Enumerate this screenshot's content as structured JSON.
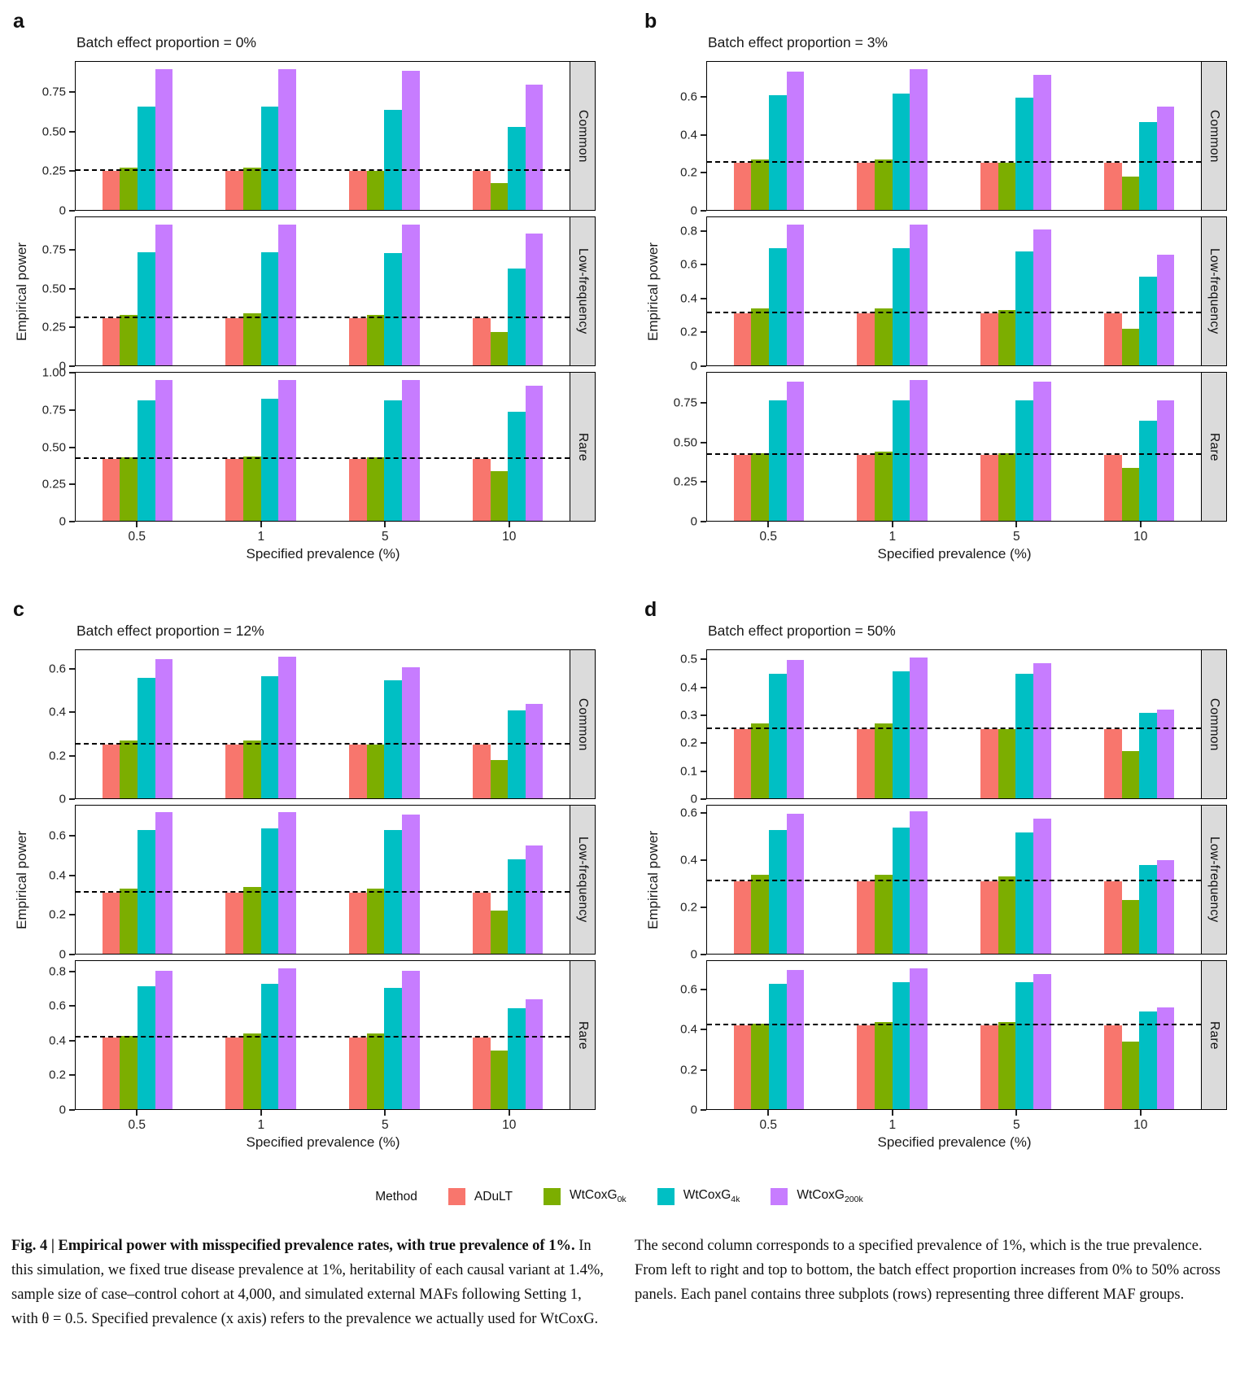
{
  "figure": {
    "y_axis_label": "Empirical power",
    "x_axis_label": "Specified prevalence (%)",
    "legend": {
      "title": "Method",
      "items": [
        {
          "base": "ADuLT",
          "sub": "",
          "color": "#F8766D"
        },
        {
          "base": "WtCoxG",
          "sub": "0k",
          "color": "#7CAE00"
        },
        {
          "base": "WtCoxG",
          "sub": "4k",
          "color": "#00BFC4"
        },
        {
          "base": "WtCoxG",
          "sub": "200k",
          "color": "#C77CFF"
        }
      ]
    },
    "caption": {
      "left_bold": "Fig. 4 | Empirical power with misspecified prevalence rates, with true prevalence of 1%.",
      "left_rest": " In this simulation, we fixed true disease prevalence at 1%, heritability of each causal variant at 1.4%, sample size of case–control cohort at 4,000, and simulated external MAFs following Setting 1, with θ = 0.5. Specified prevalence (x axis) refers to the prevalence we actually used for WtCoxG.",
      "right": "The second column corresponds to a specified prevalence of 1%, which is the true prevalence. From left to right and top to bottom, the batch effect proportion increases from 0% to 50% across panels. Each panel contains three subplots (rows) representing three different MAF groups."
    }
  },
  "chart_data": [
    {
      "panel": "a",
      "title": "Batch effect proportion = 0%",
      "type": "bar",
      "x_categories": [
        "0.5",
        "1",
        "5",
        "10"
      ],
      "series": [
        "ADuLT",
        "WtCoxG_0k",
        "WtCoxG_4k",
        "WtCoxG_200k"
      ],
      "xlabel": "Specified prevalence (%)",
      "ylabel": "Empirical power",
      "rows": [
        {
          "maf_group": "Common",
          "ymax": 0.945,
          "yticks": [
            0,
            0.25,
            0.5,
            0.75
          ],
          "ytick_labels": [
            "0",
            "0.25",
            "0.50",
            "0.75"
          ],
          "dashed_line": 0.25,
          "values": [
            [
              0.25,
              0.25,
              0.25,
              0.25
            ],
            [
              0.27,
              0.27,
              0.25,
              0.17
            ],
            [
              0.66,
              0.66,
              0.64,
              0.53
            ],
            [
              0.9,
              0.9,
              0.89,
              0.8
            ]
          ]
        },
        {
          "maf_group": "Low-frequency",
          "ymax": 0.966,
          "yticks": [
            0,
            0.25,
            0.5,
            0.75
          ],
          "ytick_labels": [
            "0",
            "0.25",
            "0.50",
            "0.75"
          ],
          "dashed_line": 0.31,
          "values": [
            [
              0.31,
              0.31,
              0.31,
              0.31
            ],
            [
              0.33,
              0.34,
              0.33,
              0.22
            ],
            [
              0.74,
              0.74,
              0.73,
              0.63
            ],
            [
              0.92,
              0.92,
              0.92,
              0.86
            ]
          ]
        },
        {
          "maf_group": "Rare",
          "ymax": 1.008,
          "yticks": [
            0,
            0.25,
            0.5,
            0.75,
            1.0
          ],
          "ytick_labels": [
            "0",
            "0.25",
            "0.50",
            "0.75",
            "1.00"
          ],
          "dashed_line": 0.42,
          "values": [
            [
              0.42,
              0.42,
              0.42,
              0.42
            ],
            [
              0.43,
              0.44,
              0.43,
              0.34
            ],
            [
              0.82,
              0.83,
              0.82,
              0.74
            ],
            [
              0.96,
              0.96,
              0.96,
              0.92
            ]
          ]
        }
      ]
    },
    {
      "panel": "b",
      "title": "Batch effect proportion = 3%",
      "type": "bar",
      "x_categories": [
        "0.5",
        "1",
        "5",
        "10"
      ],
      "series": [
        "ADuLT",
        "WtCoxG_0k",
        "WtCoxG_4k",
        "WtCoxG_200k"
      ],
      "xlabel": "Specified prevalence (%)",
      "ylabel": "Empirical power",
      "rows": [
        {
          "maf_group": "Common",
          "ymax": 0.79,
          "yticks": [
            0,
            0.2,
            0.4,
            0.6
          ],
          "ytick_labels": [
            "0",
            "0.2",
            "0.4",
            "0.6"
          ],
          "dashed_line": 0.25,
          "values": [
            [
              0.25,
              0.25,
              0.25,
              0.25
            ],
            [
              0.27,
              0.27,
              0.25,
              0.18
            ],
            [
              0.61,
              0.62,
              0.6,
              0.47
            ],
            [
              0.74,
              0.75,
              0.72,
              0.55
            ]
          ]
        },
        {
          "maf_group": "Low-frequency",
          "ymax": 0.885,
          "yticks": [
            0,
            0.2,
            0.4,
            0.6,
            0.8
          ],
          "ytick_labels": [
            "0",
            "0.2",
            "0.4",
            "0.6",
            "0.8"
          ],
          "dashed_line": 0.31,
          "values": [
            [
              0.31,
              0.31,
              0.31,
              0.31
            ],
            [
              0.34,
              0.34,
              0.33,
              0.22
            ],
            [
              0.7,
              0.7,
              0.68,
              0.53
            ],
            [
              0.84,
              0.84,
              0.81,
              0.66
            ]
          ]
        },
        {
          "maf_group": "Rare",
          "ymax": 0.945,
          "yticks": [
            0,
            0.25,
            0.5,
            0.75
          ],
          "ytick_labels": [
            "0",
            "0.25",
            "0.50",
            "0.75"
          ],
          "dashed_line": 0.42,
          "values": [
            [
              0.42,
              0.42,
              0.42,
              0.42
            ],
            [
              0.43,
              0.44,
              0.43,
              0.34
            ],
            [
              0.77,
              0.77,
              0.77,
              0.64
            ],
            [
              0.89,
              0.9,
              0.89,
              0.77
            ]
          ]
        }
      ]
    },
    {
      "panel": "c",
      "title": "Batch effect proportion = 12%",
      "type": "bar",
      "x_categories": [
        "0.5",
        "1",
        "5",
        "10"
      ],
      "series": [
        "ADuLT",
        "WtCoxG_0k",
        "WtCoxG_4k",
        "WtCoxG_200k"
      ],
      "xlabel": "Specified prevalence (%)",
      "ylabel": "Empirical power",
      "rows": [
        {
          "maf_group": "Common",
          "ymax": 0.69,
          "yticks": [
            0,
            0.2,
            0.4,
            0.6
          ],
          "ytick_labels": [
            "0",
            "0.2",
            "0.4",
            "0.6"
          ],
          "dashed_line": 0.25,
          "values": [
            [
              0.25,
              0.25,
              0.25,
              0.25
            ],
            [
              0.27,
              0.27,
              0.25,
              0.18
            ],
            [
              0.56,
              0.57,
              0.55,
              0.41
            ],
            [
              0.65,
              0.66,
              0.61,
              0.44
            ]
          ]
        },
        {
          "maf_group": "Low-frequency",
          "ymax": 0.755,
          "yticks": [
            0,
            0.2,
            0.4,
            0.6
          ],
          "ytick_labels": [
            "0",
            "0.2",
            "0.4",
            "0.6"
          ],
          "dashed_line": 0.31,
          "values": [
            [
              0.31,
              0.31,
              0.31,
              0.31
            ],
            [
              0.33,
              0.34,
              0.33,
              0.22
            ],
            [
              0.63,
              0.64,
              0.63,
              0.48
            ],
            [
              0.72,
              0.72,
              0.71,
              0.55
            ]
          ]
        },
        {
          "maf_group": "Rare",
          "ymax": 0.865,
          "yticks": [
            0,
            0.2,
            0.4,
            0.6,
            0.8
          ],
          "ytick_labels": [
            "0",
            "0.2",
            "0.4",
            "0.6",
            "0.8"
          ],
          "dashed_line": 0.42,
          "values": [
            [
              0.42,
              0.42,
              0.42,
              0.42
            ],
            [
              0.43,
              0.44,
              0.44,
              0.34
            ],
            [
              0.72,
              0.73,
              0.71,
              0.59
            ],
            [
              0.81,
              0.82,
              0.81,
              0.64
            ]
          ]
        }
      ]
    },
    {
      "panel": "d",
      "title": "Batch effect proportion = 50%",
      "type": "bar",
      "x_categories": [
        "0.5",
        "1",
        "5",
        "10"
      ],
      "series": [
        "ADuLT",
        "WtCoxG_0k",
        "WtCoxG_4k",
        "WtCoxG_200k"
      ],
      "xlabel": "Specified prevalence (%)",
      "ylabel": "Empirical power",
      "rows": [
        {
          "maf_group": "Common",
          "ymax": 0.536,
          "yticks": [
            0,
            0.1,
            0.2,
            0.3,
            0.4,
            0.5
          ],
          "ytick_labels": [
            "0",
            "0.1",
            "0.2",
            "0.3",
            "0.4",
            "0.5"
          ],
          "dashed_line": 0.25,
          "values": [
            [
              0.25,
              0.25,
              0.25,
              0.25
            ],
            [
              0.27,
              0.27,
              0.25,
              0.17
            ],
            [
              0.45,
              0.46,
              0.45,
              0.31
            ],
            [
              0.5,
              0.51,
              0.49,
              0.32
            ]
          ]
        },
        {
          "maf_group": "Low-frequency",
          "ymax": 0.635,
          "yticks": [
            0,
            0.2,
            0.4,
            0.6
          ],
          "ytick_labels": [
            "0",
            "0.2",
            "0.4",
            "0.6"
          ],
          "dashed_line": 0.31,
          "values": [
            [
              0.31,
              0.31,
              0.31,
              0.31
            ],
            [
              0.34,
              0.34,
              0.33,
              0.23
            ],
            [
              0.53,
              0.54,
              0.52,
              0.38
            ],
            [
              0.6,
              0.61,
              0.58,
              0.4
            ]
          ]
        },
        {
          "maf_group": "Rare",
          "ymax": 0.745,
          "yticks": [
            0,
            0.2,
            0.4,
            0.6
          ],
          "ytick_labels": [
            "0",
            "0.2",
            "0.4",
            "0.6"
          ],
          "dashed_line": 0.42,
          "values": [
            [
              0.42,
              0.42,
              0.42,
              0.42
            ],
            [
              0.43,
              0.44,
              0.44,
              0.34
            ],
            [
              0.63,
              0.64,
              0.64,
              0.49
            ],
            [
              0.7,
              0.71,
              0.68,
              0.51
            ]
          ]
        }
      ]
    }
  ]
}
